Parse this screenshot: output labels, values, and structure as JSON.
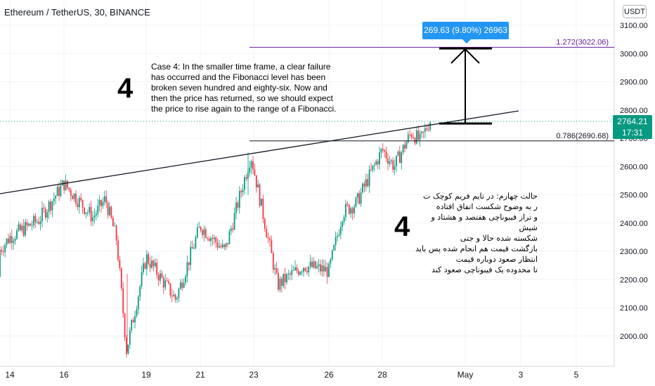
{
  "header": {
    "symbol": "Ethereum / TetherUS, 30, BINANCE",
    "currency": "USDT"
  },
  "tooltip": {
    "measure": "269.63 (9.80%) 26963"
  },
  "notes": {
    "english": "Case 4: In the smaller time frame, a clear failure\n has occurred and the Fibonacci level has been\nbroken seven hundred and eighty-six. Now and\nthen the price has returned, so we should expect\nthe price to rise again to the range of a Fibonacci.",
    "persian": "حالت چهارم: در تایم فریم کوچک ت\nر به وضوح شکست  اتفاق افتاده\nو  تراز فیبوناچی هفتصد و هشتاد و شیش\nشکسته  شده حالا و جتی\nبازگشت قیمت هم انجام شده پس باید\nانتظار صعود دوباره قیمت\nتا محدوده  یک  فیبوناچی صعود کند",
    "number_top": "4",
    "number_bottom": "4"
  },
  "price_tag": {
    "price": "2764.21",
    "countdown": "17:31",
    "color": "#089981"
  },
  "colors": {
    "up": "#089981",
    "down": "#f23645",
    "fib_1272": "#6a1b9a",
    "tooltip": "#2196f3"
  },
  "chart_data": {
    "type": "candlestick",
    "title": "Ethereum / TetherUS, 30, BINANCE",
    "y_axis": {
      "side": "right",
      "ticks": [
        "3100.00",
        "3000.00",
        "2900.00",
        "2800.00",
        "2700.00",
        "2600.00",
        "2500.00",
        "2400.00",
        "2300.00",
        "2200.00",
        "2100.00",
        "2000.00"
      ],
      "range": [
        1920,
        3150
      ]
    },
    "x_axis": {
      "ticks": [
        "14",
        "16",
        "19",
        "21",
        "23",
        "26",
        "28",
        "May",
        "3",
        "5"
      ]
    },
    "price_path": [
      {
        "date": "13",
        "close": 2210
      },
      {
        "date": "14",
        "close": 2350
      },
      {
        "date": "15",
        "close": 2410
      },
      {
        "date": "16",
        "close": 2540
      },
      {
        "date": "17",
        "close": 2420
      },
      {
        "date": "17.5",
        "close": 2485
      },
      {
        "date": "18",
        "close": 2340
      },
      {
        "date": "18.5",
        "close": 1950
      },
      {
        "date": "19",
        "close": 2280
      },
      {
        "date": "20",
        "close": 2130
      },
      {
        "date": "21",
        "close": 2390
      },
      {
        "date": "22",
        "close": 2300
      },
      {
        "date": "23",
        "close": 2640
      },
      {
        "date": "24",
        "close": 2180
      },
      {
        "date": "25",
        "close": 2250
      },
      {
        "date": "26",
        "close": 2230
      },
      {
        "date": "26.5",
        "close": 2440
      },
      {
        "date": "27",
        "close": 2470
      },
      {
        "date": "28",
        "close": 2660
      },
      {
        "date": "28.5",
        "close": 2600
      },
      {
        "date": "29",
        "close": 2720
      },
      {
        "date": "29.5",
        "close": 2690
      },
      {
        "date": "30",
        "close": 2764
      }
    ],
    "fib_levels": [
      {
        "label": "1.272(3022.06)",
        "value": 3022.06
      },
      {
        "label": "0.786(2690.68)",
        "value": 2690.68
      }
    ],
    "current_price": 2764.21
  }
}
